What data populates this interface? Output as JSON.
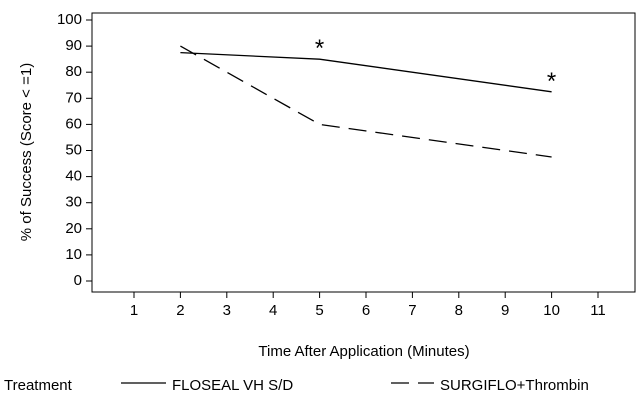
{
  "chart_data": {
    "type": "line",
    "x_categories": [
      "1",
      "2",
      "3",
      "4",
      "5",
      "6",
      "7",
      "8",
      "9",
      "10",
      "11"
    ],
    "xlabel": "Time After Application (Minutes)",
    "ylabel": "% of Success (Score < =1)",
    "ylim": [
      0,
      100
    ],
    "yticks": [
      "0",
      "10",
      "20",
      "30",
      "40",
      "50",
      "60",
      "70",
      "80",
      "90",
      "100"
    ],
    "grid": false,
    "series": [
      {
        "name": "FLOSEAL VH S/D",
        "style": "solid",
        "x": [
          "2",
          "5",
          "10"
        ],
        "y": [
          87.5,
          85,
          72.5
        ]
      },
      {
        "name": "SURGIFLO+Thrombin",
        "style": "dashed",
        "x": [
          "2",
          "5",
          "10"
        ],
        "y": [
          90,
          60,
          47.5
        ]
      }
    ],
    "annotations": [
      {
        "text": "*",
        "x": "5",
        "y": 85
      },
      {
        "text": "*",
        "x": "10",
        "y": 72.5
      }
    ],
    "legend": {
      "title": "Treatment",
      "placement": "bottom"
    }
  }
}
